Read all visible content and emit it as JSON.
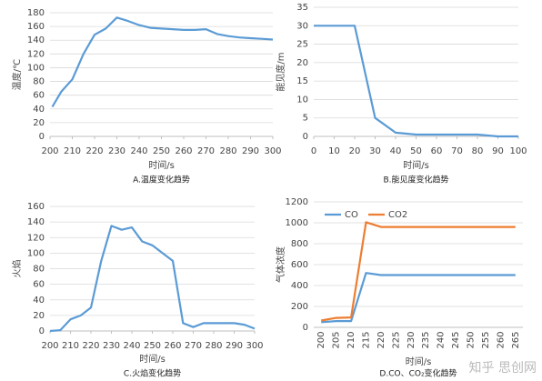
{
  "chart_data": [
    {
      "type": "line",
      "title": "A.温度变化趋势",
      "xlabel": "时间/s",
      "ylabel": "温度/℃",
      "x": [
        201,
        205,
        210,
        215,
        220,
        225,
        230,
        235,
        240,
        245,
        250,
        255,
        260,
        265,
        270,
        275,
        280,
        285,
        290,
        295,
        300
      ],
      "values": [
        43,
        65,
        83,
        120,
        148,
        157,
        173,
        168,
        162,
        158,
        157,
        156,
        155,
        155,
        156,
        149,
        146,
        144,
        143,
        142,
        141
      ],
      "color": "#5b9bd5",
      "xlim": [
        200,
        300
      ],
      "xticks": [
        200,
        210,
        220,
        230,
        240,
        250,
        260,
        270,
        280,
        290,
        300
      ],
      "ylim": [
        0,
        180
      ],
      "yticks": [
        0,
        20,
        40,
        60,
        80,
        100,
        120,
        140,
        160,
        180
      ],
      "grid": true
    },
    {
      "type": "line",
      "title": "B.能见度变化趋势",
      "xlabel": "时间/s",
      "ylabel": "能见度/m",
      "x": [
        0,
        10,
        20,
        30,
        40,
        50,
        60,
        70,
        80,
        90,
        100
      ],
      "values": [
        30,
        30,
        30,
        5,
        1,
        0.5,
        0.5,
        0.5,
        0.5,
        0,
        0
      ],
      "color": "#5b9bd5",
      "xlim": [
        0,
        100
      ],
      "xticks": [
        0,
        10,
        20,
        30,
        40,
        50,
        60,
        70,
        80,
        90,
        100
      ],
      "ylim": [
        0,
        35
      ],
      "yticks": [
        0,
        5,
        10,
        15,
        20,
        25,
        30,
        35
      ],
      "grid": true
    },
    {
      "type": "line",
      "title": "C.火焰变化趋势",
      "xlabel": "时间/s",
      "ylabel": "火焰",
      "x": [
        200,
        205,
        210,
        215,
        220,
        225,
        230,
        235,
        240,
        245,
        250,
        255,
        260,
        265,
        270,
        275,
        280,
        285,
        290,
        295,
        300
      ],
      "values": [
        0,
        1,
        15,
        20,
        30,
        90,
        135,
        130,
        133,
        115,
        110,
        100,
        90,
        10,
        5,
        10,
        10,
        10,
        10,
        8,
        3
      ],
      "color": "#5b9bd5",
      "xlim": [
        200,
        300
      ],
      "xticks": [
        200,
        210,
        220,
        230,
        240,
        250,
        260,
        270,
        280,
        290,
        300
      ],
      "ylim": [
        0,
        160
      ],
      "yticks": [
        0,
        20,
        40,
        60,
        80,
        100,
        120,
        140,
        160
      ],
      "grid": true
    },
    {
      "type": "line",
      "title": "D.CO、CO₂变化趋势",
      "xlabel": "时间/s",
      "ylabel": "气体浓度",
      "categories": [
        "200",
        "205",
        "210",
        "215",
        "220",
        "225",
        "230",
        "235",
        "240",
        "245",
        "250",
        "255",
        "260",
        "265"
      ],
      "series": [
        {
          "name": "CO",
          "color": "#5b9bd5",
          "values": [
            50,
            60,
            60,
            520,
            500,
            500,
            500,
            500,
            500,
            500,
            500,
            500,
            500,
            500
          ]
        },
        {
          "name": "CO2",
          "color": "#ed7d31",
          "values": [
            65,
            90,
            95,
            1005,
            960,
            960,
            960,
            960,
            960,
            960,
            960,
            960,
            960,
            960
          ]
        }
      ],
      "ylim": [
        0,
        1200
      ],
      "yticks": [
        0,
        200,
        400,
        600,
        800,
        1000,
        1200
      ],
      "grid": true,
      "legend": "top-left"
    }
  ],
  "watermark": "知乎 思创网"
}
